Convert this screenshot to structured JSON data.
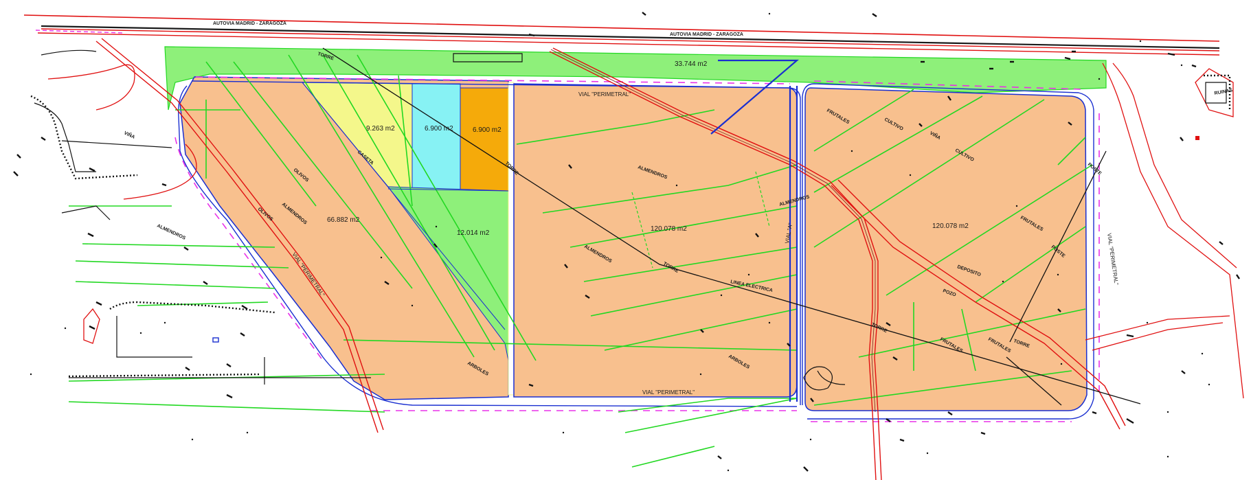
{
  "road": {
    "autovia_left": "AUTOVIA    MADRID    -    ZARAGOZA",
    "autovia_right": "AUTOVIA    MADRID    -    ZARAGOZA"
  },
  "areas": {
    "strip_top": "33.744 m2",
    "plot_yellow": "9.263 m2",
    "plot_cyan": "6.900 m2",
    "plot_orange": "6.900 m2",
    "plot_green": "12.014 m2",
    "plot_left": "66.882 m2",
    "plot_middle": "120.078 m2",
    "plot_right": "120.078 m2"
  },
  "roads": {
    "perimetral_top": "VIAL \"PERIMETRAL\"",
    "perimetral_bottom": "VIAL \"PERIMETRAL\"",
    "perimetral_left": "VIAL \"PERIMETRAL\"",
    "perimetral_right": "VIAL \"PERIMETRAL\"",
    "vial_a": "VIAL \"A\"",
    "linea": "LINEA ELECTRICA"
  },
  "features": {
    "torre": "TORRE",
    "caseta": "CASETA",
    "olivos": "OLIVOS",
    "almendros": "ALMENDROS",
    "vina": "VIÑA",
    "frutales": "FRUTALES",
    "cultivo": "CULTIVO",
    "arboles": "ARBOLES",
    "deposito": "DEPOSITO",
    "pozo": "POZO",
    "poste": "POSTE",
    "ruinas": "RUINAS"
  },
  "colors": {
    "plot_fill": "#f8c08e",
    "green_strip": "#8ef07a",
    "yellow_plot": "#f4f78b",
    "cyan_plot": "#87f2f4",
    "orange_plot": "#f5aa0a",
    "boundary_green": "#22d822",
    "road_red": "#e01010",
    "road_blue": "#1a2fd0",
    "magenta_dash": "#e830e8"
  }
}
